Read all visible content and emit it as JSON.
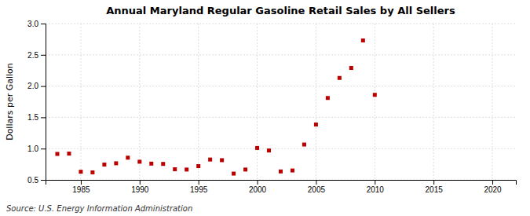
{
  "chart_data": {
    "type": "scatter",
    "title": "Annual Maryland Regular Gasoline Retail Sales by All Sellers",
    "ylabel": "Dollars per Gallon",
    "annotations": [
      "Source: U.S. Energy Information Administration"
    ],
    "x": [
      1983,
      1984,
      1985,
      1986,
      1987,
      1988,
      1989,
      1990,
      1991,
      1992,
      1993,
      1994,
      1995,
      1996,
      1997,
      1998,
      1999,
      2000,
      2001,
      2002,
      2003,
      2004,
      2005,
      2006,
      2007,
      2008,
      2009,
      2010
    ],
    "values": [
      0.915,
      0.92,
      0.63,
      0.62,
      0.745,
      0.765,
      0.855,
      0.79,
      0.76,
      0.755,
      0.67,
      0.665,
      0.72,
      0.825,
      0.815,
      0.6,
      0.665,
      1.01,
      0.97,
      0.635,
      0.65,
      1.065,
      1.385,
      1.81,
      2.13,
      2.29,
      2.73,
      1.86
    ],
    "color": "#bb0000",
    "marker": "square",
    "xlim": [
      1982,
      2022
    ],
    "ylim": [
      0.5,
      3.0
    ],
    "xticks": [
      1985,
      1990,
      1995,
      2000,
      2005,
      2010,
      2015,
      2020
    ],
    "yticks": [
      0.5,
      {
        "value": 1.0,
        "label": "1.0"
      },
      1.5,
      {
        "value": 2.0,
        "label": "2.0"
      },
      2.5,
      {
        "value": 3.0,
        "label": "3.0"
      }
    ],
    "grid": true
  }
}
